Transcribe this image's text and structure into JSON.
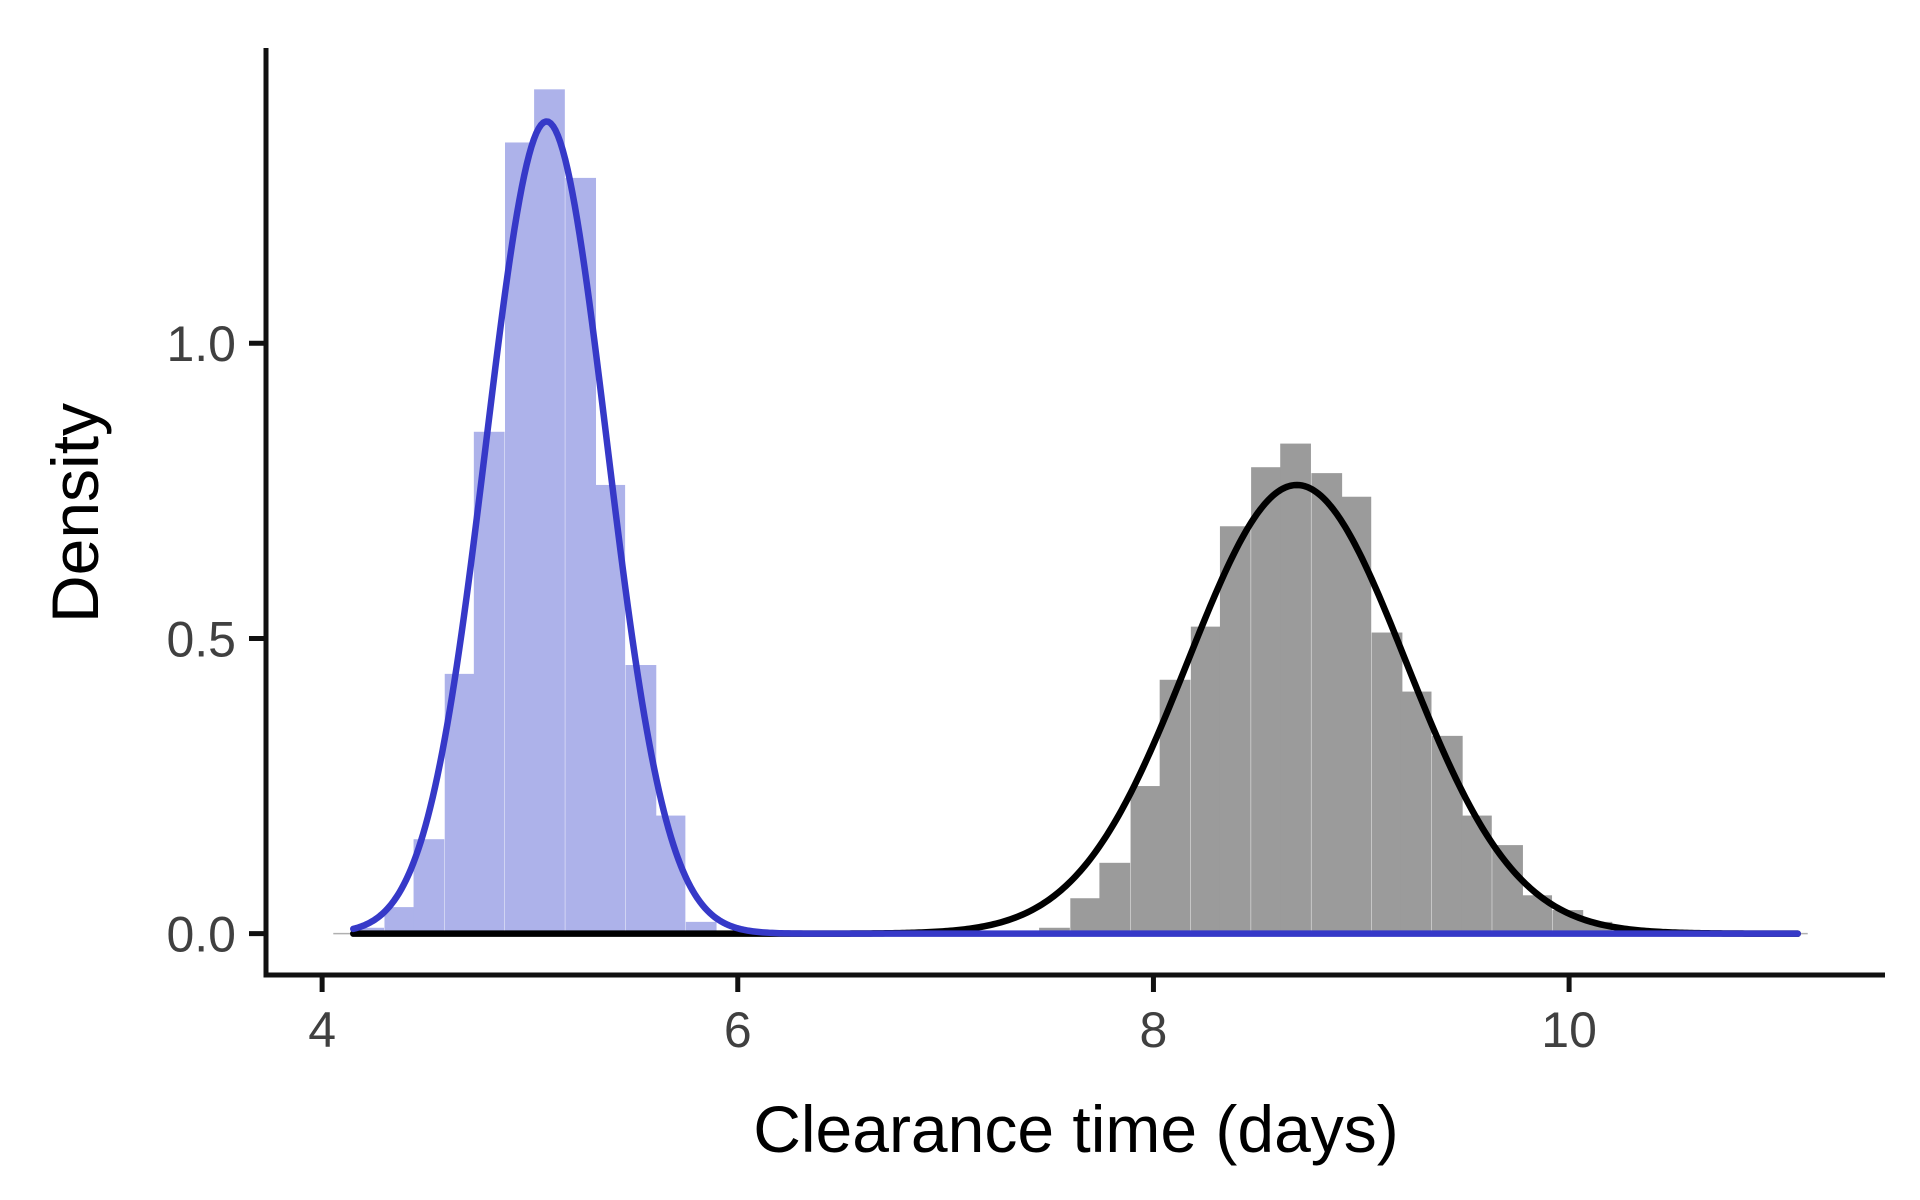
{
  "chart_data": {
    "type": "histogram-density",
    "title": "",
    "xlabel": "Clearance time (days)",
    "ylabel": "Density",
    "xlim": [
      3.73,
      11.52
    ],
    "ylim": [
      -0.07,
      1.5
    ],
    "x_ticks": [
      4,
      6,
      8,
      10
    ],
    "x_tick_labels": [
      "4",
      "6",
      "8",
      "10"
    ],
    "y_ticks": [
      0.0,
      0.5,
      1.0
    ],
    "y_tick_labels": [
      "0.0",
      "0.5",
      "1.0"
    ],
    "grid": false,
    "legend": "none",
    "series": [
      {
        "color": "#3639C8",
        "fill_color": "#ADB2EA",
        "bin_width": 0.145,
        "bins": [
          {
            "x0": 4.15,
            "density": 0.01
          },
          {
            "x0": 4.3,
            "density": 0.045
          },
          {
            "x0": 4.44,
            "density": 0.16
          },
          {
            "x0": 4.59,
            "density": 0.44
          },
          {
            "x0": 4.73,
            "density": 0.85
          },
          {
            "x0": 4.88,
            "density": 1.34
          },
          {
            "x0": 5.02,
            "density": 1.43
          },
          {
            "x0": 5.17,
            "density": 1.28
          },
          {
            "x0": 5.31,
            "density": 0.76
          },
          {
            "x0": 5.46,
            "density": 0.455
          },
          {
            "x0": 5.6,
            "density": 0.2
          },
          {
            "x0": 5.75,
            "density": 0.02
          }
        ],
        "density_curve": {
          "mean": 5.08,
          "sd": 0.29,
          "x_range": [
            4.15,
            11.1
          ]
        }
      },
      {
        "color": "#000000",
        "fill_color": "#9B9B9B",
        "bin_width": 0.145,
        "bins": [
          {
            "x0": 7.45,
            "density": 0.01
          },
          {
            "x0": 7.6,
            "density": 0.06
          },
          {
            "x0": 7.74,
            "density": 0.12
          },
          {
            "x0": 7.89,
            "density": 0.25
          },
          {
            "x0": 8.03,
            "density": 0.43
          },
          {
            "x0": 8.18,
            "density": 0.52
          },
          {
            "x0": 8.32,
            "density": 0.69
          },
          {
            "x0": 8.47,
            "density": 0.79
          },
          {
            "x0": 8.61,
            "density": 0.83
          },
          {
            "x0": 8.76,
            "density": 0.78
          },
          {
            "x0": 8.9,
            "density": 0.74
          },
          {
            "x0": 9.05,
            "density": 0.51
          },
          {
            "x0": 9.19,
            "density": 0.41
          },
          {
            "x0": 9.34,
            "density": 0.335
          },
          {
            "x0": 9.48,
            "density": 0.2
          },
          {
            "x0": 9.63,
            "density": 0.15
          },
          {
            "x0": 9.77,
            "density": 0.065
          },
          {
            "x0": 9.92,
            "density": 0.04
          },
          {
            "x0": 10.06,
            "density": 0.02
          },
          {
            "x0": 10.21,
            "density": 0.005
          }
        ],
        "density_curve": {
          "mean": 8.69,
          "sd": 0.525,
          "x_range": [
            4.15,
            11.1
          ]
        }
      }
    ]
  }
}
